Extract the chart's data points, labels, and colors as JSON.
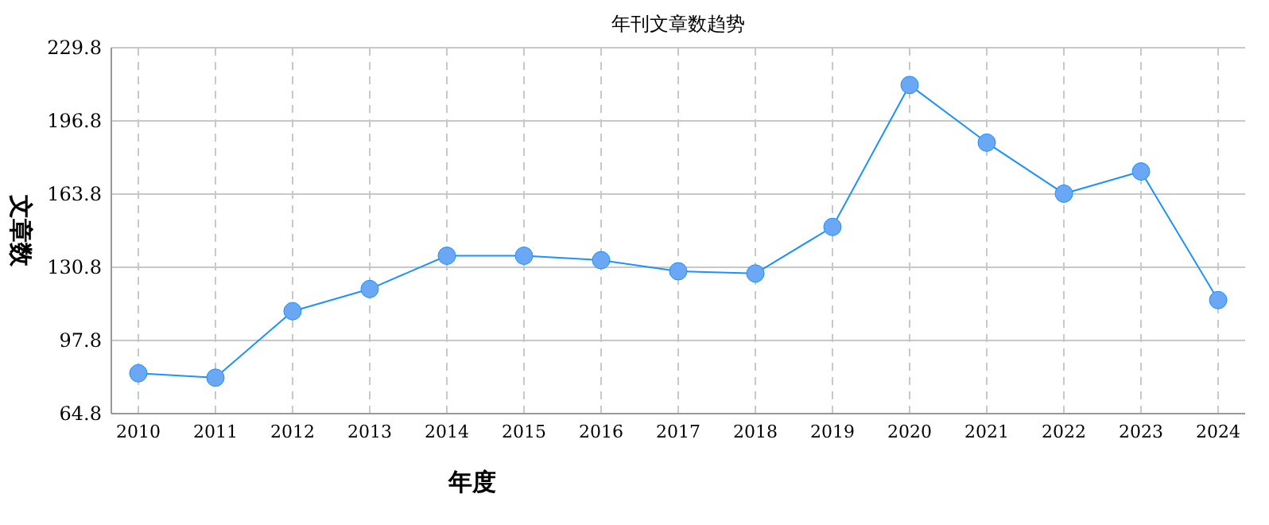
{
  "chart_data": {
    "type": "line",
    "title": "年刊文章数趋势",
    "xlabel": "年度",
    "ylabel": "文章数",
    "categories": [
      "2010",
      "2011",
      "2012",
      "2013",
      "2014",
      "2015",
      "2016",
      "2017",
      "2018",
      "2019",
      "2020",
      "2021",
      "2022",
      "2023",
      "2024"
    ],
    "series": [
      {
        "color": "#1e90ff",
        "values": [
          83,
          81,
          111,
          121,
          136,
          136,
          134,
          129,
          128,
          149,
          213,
          187,
          164,
          174,
          116
        ]
      }
    ],
    "ylim": [
      64.8,
      229.8
    ],
    "yticks": [
      64.8,
      97.8,
      130.8,
      163.8,
      196.8,
      229.8
    ],
    "grid": true,
    "marker": "circle",
    "line_style": "solid"
  }
}
